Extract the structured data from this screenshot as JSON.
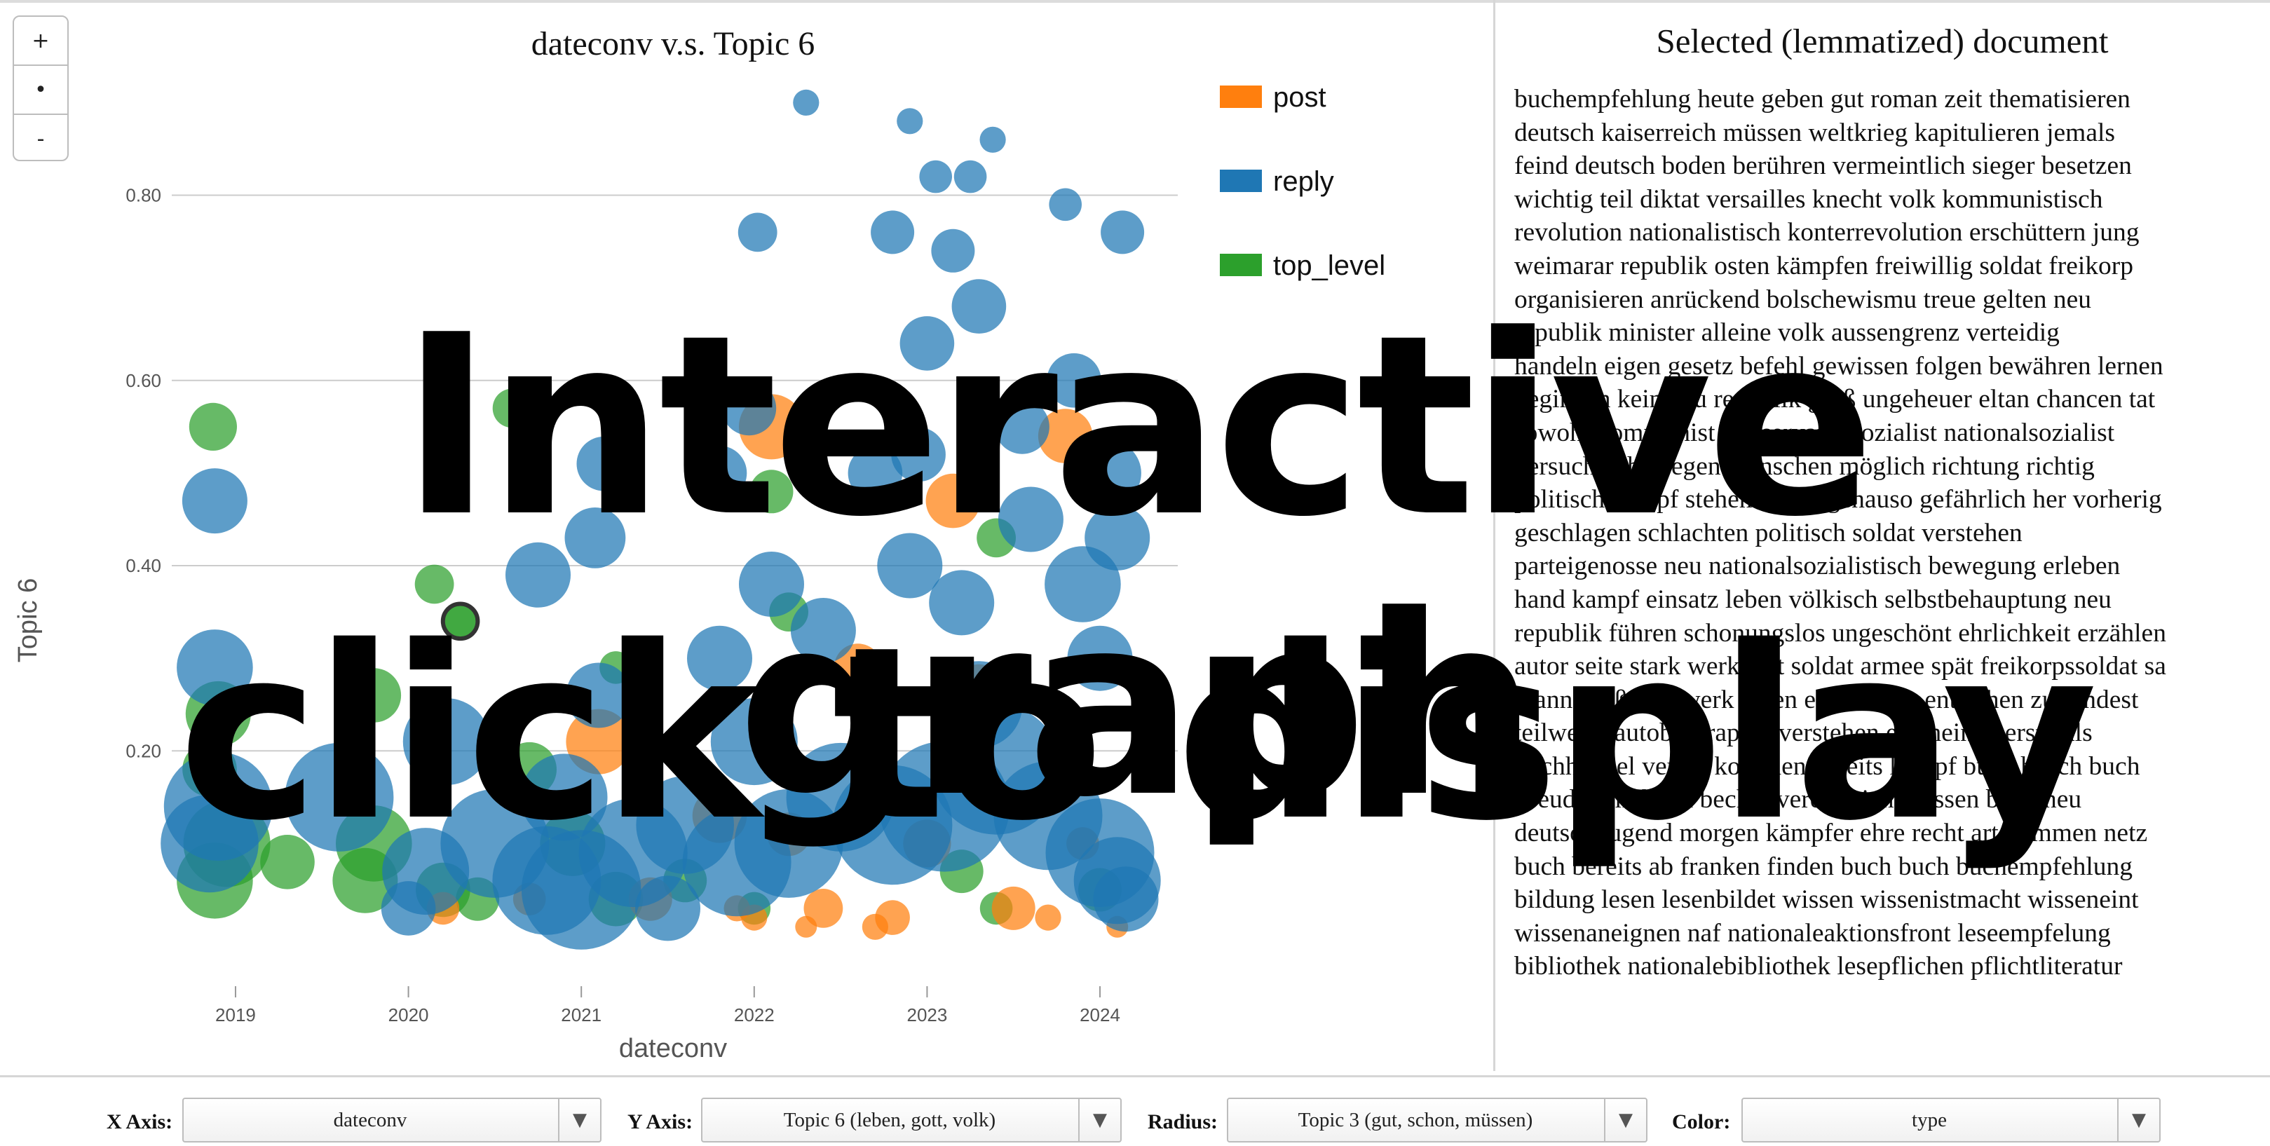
{
  "zoom": {
    "plus": "+",
    "reset": "•",
    "minus": "-"
  },
  "chart_data": {
    "type": "scatter",
    "title": "dateconv v.s. Topic 6",
    "xlabel": "dateconv",
    "ylabel": "Topic 6",
    "xlim": [
      2018.55,
      2024.45
    ],
    "ylim": [
      -0.045,
      0.92
    ],
    "x_ticks": [
      2019,
      2020,
      2021,
      2022,
      2023,
      2024
    ],
    "x_tick_labels": [
      "2019",
      "2020",
      "2021",
      "2022",
      "2023",
      "2024"
    ],
    "y_ticks": [
      0.2,
      0.4,
      0.6,
      0.8
    ],
    "y_tick_labels": [
      "0.20",
      "0.40",
      "0.60",
      "0.80"
    ],
    "grid": true,
    "legend_position": "top-right",
    "colors": {
      "post": "#ff7f0e",
      "reply": "#1f77b4",
      "top_level": "#2ca02c"
    },
    "series": [
      {
        "name": "post",
        "points": [
          [
            2022.1,
            0.55,
            0.03
          ],
          [
            2023.15,
            0.47,
            0.025
          ],
          [
            2022.6,
            0.29,
            0.022
          ],
          [
            2023.3,
            0.27,
            0.02
          ],
          [
            2021.1,
            0.21,
            0.03
          ],
          [
            2021.8,
            0.13,
            0.025
          ],
          [
            2022.2,
            0.11,
            0.02
          ],
          [
            2023.0,
            0.1,
            0.022
          ],
          [
            2020.2,
            0.03,
            0.015
          ],
          [
            2021.4,
            0.04,
            0.02
          ],
          [
            2022.4,
            0.03,
            0.018
          ],
          [
            2022.8,
            0.02,
            0.016
          ],
          [
            2023.5,
            0.03,
            0.02
          ],
          [
            2023.8,
            0.54,
            0.025
          ],
          [
            2022.0,
            0.02,
            0.012
          ],
          [
            2021.9,
            0.03,
            0.012
          ],
          [
            2022.3,
            0.01,
            0.01
          ],
          [
            2023.7,
            0.02,
            0.012
          ],
          [
            2024.1,
            0.01,
            0.01
          ],
          [
            2020.7,
            0.04,
            0.015
          ],
          [
            2023.9,
            0.1,
            0.015
          ],
          [
            2022.7,
            0.01,
            0.012
          ]
        ]
      },
      {
        "name": "reply",
        "points": [
          [
            2018.88,
            0.47,
            0.03
          ],
          [
            2018.88,
            0.29,
            0.035
          ],
          [
            2018.9,
            0.14,
            0.05
          ],
          [
            2018.85,
            0.1,
            0.045
          ],
          [
            2019.6,
            0.15,
            0.05
          ],
          [
            2020.1,
            0.07,
            0.04
          ],
          [
            2020.5,
            0.1,
            0.05
          ],
          [
            2020.8,
            0.06,
            0.05
          ],
          [
            2021.0,
            0.05,
            0.055
          ],
          [
            2021.3,
            0.09,
            0.05
          ],
          [
            2021.6,
            0.12,
            0.045
          ],
          [
            2021.9,
            0.08,
            0.05
          ],
          [
            2022.2,
            0.1,
            0.05
          ],
          [
            2022.5,
            0.15,
            0.05
          ],
          [
            2022.8,
            0.12,
            0.055
          ],
          [
            2023.1,
            0.14,
            0.06
          ],
          [
            2023.4,
            0.18,
            0.06
          ],
          [
            2023.7,
            0.13,
            0.05
          ],
          [
            2024.0,
            0.09,
            0.05
          ],
          [
            2024.1,
            0.06,
            0.04
          ],
          [
            2020.22,
            0.21,
            0.04
          ],
          [
            2020.75,
            0.39,
            0.03
          ],
          [
            2021.08,
            0.43,
            0.028
          ],
          [
            2021.13,
            0.51,
            0.025
          ],
          [
            2021.8,
            0.5,
            0.025
          ],
          [
            2021.97,
            0.57,
            0.025
          ],
          [
            2022.02,
            0.76,
            0.018
          ],
          [
            2022.3,
            0.9,
            0.012
          ],
          [
            2022.8,
            0.76,
            0.02
          ],
          [
            2022.9,
            0.88,
            0.012
          ],
          [
            2023.05,
            0.82,
            0.015
          ],
          [
            2023.25,
            0.82,
            0.015
          ],
          [
            2023.38,
            0.86,
            0.012
          ],
          [
            2023.15,
            0.74,
            0.02
          ],
          [
            2023.3,
            0.68,
            0.025
          ],
          [
            2023.0,
            0.64,
            0.025
          ],
          [
            2023.8,
            0.79,
            0.015
          ],
          [
            2024.13,
            0.76,
            0.02
          ],
          [
            2023.85,
            0.6,
            0.025
          ],
          [
            2024.05,
            0.5,
            0.03
          ],
          [
            2024.1,
            0.43,
            0.03
          ],
          [
            2022.7,
            0.5,
            0.025
          ],
          [
            2022.9,
            0.4,
            0.03
          ],
          [
            2023.2,
            0.36,
            0.03
          ],
          [
            2023.6,
            0.45,
            0.03
          ],
          [
            2023.9,
            0.38,
            0.035
          ],
          [
            2022.1,
            0.38,
            0.03
          ],
          [
            2022.4,
            0.33,
            0.03
          ],
          [
            2021.8,
            0.3,
            0.03
          ],
          [
            2023.55,
            0.55,
            0.025
          ],
          [
            2022.95,
            0.52,
            0.025
          ],
          [
            2024.0,
            0.3,
            0.03
          ],
          [
            2021.1,
            0.26,
            0.03
          ],
          [
            2020.9,
            0.15,
            0.04
          ],
          [
            2022.0,
            0.21,
            0.04
          ],
          [
            2023.3,
            0.25,
            0.04
          ],
          [
            2020.0,
            0.03,
            0.025
          ],
          [
            2021.5,
            0.03,
            0.03
          ],
          [
            2024.15,
            0.04,
            0.03
          ]
        ]
      },
      {
        "name": "top_level",
        "points": [
          [
            2018.87,
            0.55,
            0.022
          ],
          [
            2018.9,
            0.24,
            0.03
          ],
          [
            2018.85,
            0.18,
            0.025
          ],
          [
            2018.95,
            0.1,
            0.04
          ],
          [
            2018.88,
            0.06,
            0.035
          ],
          [
            2019.3,
            0.08,
            0.025
          ],
          [
            2019.8,
            0.26,
            0.025
          ],
          [
            2019.8,
            0.1,
            0.035
          ],
          [
            2019.75,
            0.06,
            0.03
          ],
          [
            2020.15,
            0.38,
            0.018
          ],
          [
            2020.6,
            0.57,
            0.018
          ],
          [
            2020.3,
            0.34,
            0.016
          ],
          [
            2021.2,
            0.29,
            0.015
          ],
          [
            2020.7,
            0.18,
            0.025
          ],
          [
            2020.95,
            0.1,
            0.03
          ],
          [
            2021.2,
            0.04,
            0.025
          ],
          [
            2020.4,
            0.04,
            0.02
          ],
          [
            2021.6,
            0.06,
            0.02
          ],
          [
            2022.1,
            0.48,
            0.02
          ],
          [
            2022.2,
            0.35,
            0.018
          ],
          [
            2023.4,
            0.43,
            0.018
          ],
          [
            2022.0,
            0.03,
            0.015
          ],
          [
            2023.2,
            0.07,
            0.02
          ],
          [
            2023.4,
            0.03,
            0.015
          ],
          [
            2020.2,
            0.05,
            0.025
          ],
          [
            2024.0,
            0.05,
            0.02
          ]
        ],
        "highlighted_index": 11
      }
    ]
  },
  "document": {
    "title": "Selected (lemmatized) document",
    "lines": [
      "buchempfehlung heute geben gut roman zeit thematisieren",
      "deutsch kaiserreich müssen weltkrieg kapitulieren jemals",
      "feind deutsch boden berühren vermeintlich sieger besetzen",
      "wichtig teil diktat versailles knecht volk kommunistisch",
      "revolution nationalistisch konterrevolution erschüttern jung",
      "weimarar republik osten kämpfen freiwillig soldat freikorp",
      "organisieren anrückend bolschewismu treue gelten neu",
      "republik minister alleine volk aussengrenz verteidig",
      "handeln eigen gesetz befehl gewissen folgen bewähren lernen",
      "beginnen kein neu republik groß ungeheuer eltan chancen tat",
      "sowohl kommunist konservativ sozialist nationalsozialist",
      "versuchen bewegen menschen möglich richtung richtig",
      "politisch kampf stehen selten genauso gefährlich her vorherig",
      "geschlagen schlachten politisch soldat verstehen",
      "parteigenosse neu nationalsozialistisch bewegung erleben",
      "hand kampf einsatz leben völkisch selbstbehauptung neu",
      "republik führen schonungslos ungeschönt ehrlichkeit erzählen",
      "autor seite stark werk zeit soldat armee spät freikorpssoldat sa",
      "mann groß bild werk eigen erinnerung entstehen zumindest",
      "teilweise autobiographie verstehen erscheinen erstmals",
      "buchhandel verlag kommen bereits kampf buch busch buch",
      "pseudonym buch becker verein nicht wissen buch neu",
      "deutsch jugend morgen kämpfer ehre recht art kommen netz",
      "buch bereits ab franken finden buch buch buchempfehlung",
      "bildung lesen lesenbildet wissen wissenistmacht wisseneint",
      "wissenaneignen naf nationaleaktionsfront leseempfelung",
      "bibliothek nationalebibliothek lesepflichen pflichtliteratur"
    ]
  },
  "controls": {
    "x_axis": {
      "label": "X Axis:",
      "value": "dateconv"
    },
    "y_axis": {
      "label": "Y Axis:",
      "value": "Topic 6 (leben, gott, volk)"
    },
    "radius": {
      "label": "Radius:",
      "value": "Topic 3 (gut, schon, müssen)"
    },
    "color": {
      "label": "Color:",
      "value": "type"
    }
  },
  "overlay": {
    "line1": "Interactive graph",
    "line2": "click to display"
  }
}
